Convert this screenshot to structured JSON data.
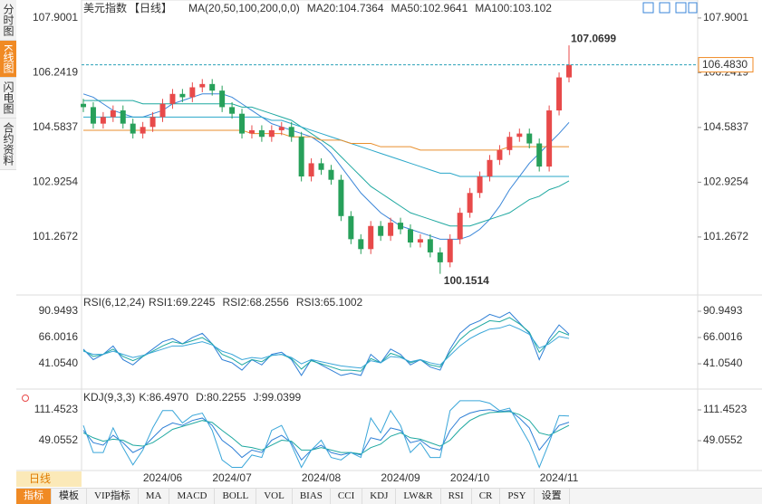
{
  "side_tabs": [
    "分时图",
    "K线图",
    "闪电图",
    "合约资料"
  ],
  "period_button": "日线",
  "toolbar": [
    "指标",
    "模板",
    "VIP指标",
    "MA",
    "MACD",
    "BOLL",
    "VOL",
    "BIAS",
    "CCI",
    "KDJ",
    "LW&R",
    "RSI",
    "CR",
    "PSY",
    "设置"
  ],
  "chart_data": [
    {
      "type": "candlestick",
      "title": "美元指数",
      "subtitle": "【日线】",
      "indicator": "MA(20,50,100,200,0,0)",
      "up_color": "#e84a4a",
      "down_color": "#27a05a",
      "categories": [
        null,
        null,
        null,
        null,
        null,
        null,
        null,
        null,
        "2024/06",
        null,
        null,
        null,
        null,
        null,
        null,
        "2024/07",
        null,
        null,
        null,
        null,
        null,
        null,
        null,
        null,
        "2024/08",
        null,
        null,
        null,
        null,
        null,
        null,
        null,
        "2024/09",
        null,
        null,
        null,
        null,
        null,
        null,
        "2024/10",
        null,
        null,
        null,
        null,
        null,
        null,
        null,
        null,
        "2024/11",
        null
      ],
      "open": [
        105.3,
        105.2,
        104.7,
        104.9,
        105.1,
        104.7,
        104.4,
        104.6,
        104.9,
        105.3,
        105.6,
        105.5,
        105.8,
        105.9,
        105.7,
        105.2,
        105.0,
        104.4,
        104.5,
        104.3,
        104.5,
        104.6,
        104.3,
        103.1,
        103.5,
        103.3,
        103.0,
        101.9,
        101.2,
        100.9,
        101.6,
        101.3,
        101.7,
        101.5,
        101.1,
        101.2,
        100.8,
        100.5,
        101.2,
        102.0,
        102.6,
        103.1,
        103.6,
        103.9,
        104.3,
        104.4,
        104.1,
        103.4,
        105.1,
        106.1
      ],
      "high": [
        105.45,
        105.35,
        105.05,
        105.25,
        105.25,
        104.85,
        104.75,
        105.05,
        105.45,
        105.75,
        105.75,
        105.95,
        106.05,
        106.05,
        105.85,
        105.35,
        105.15,
        104.65,
        104.65,
        104.65,
        104.75,
        104.75,
        104.45,
        103.65,
        103.65,
        103.45,
        103.15,
        102.05,
        101.35,
        101.75,
        101.75,
        101.85,
        101.85,
        101.65,
        101.35,
        101.35,
        100.95,
        101.35,
        102.15,
        102.75,
        103.25,
        103.75,
        104.05,
        104.45,
        104.55,
        104.55,
        104.25,
        105.25,
        106.25,
        107.0699
      ],
      "low": [
        105.05,
        104.55,
        104.55,
        104.75,
        104.55,
        104.25,
        104.25,
        104.45,
        104.75,
        105.15,
        105.35,
        105.35,
        105.65,
        105.55,
        105.05,
        104.85,
        104.25,
        104.25,
        104.15,
        104.15,
        104.35,
        104.15,
        102.95,
        102.95,
        103.15,
        102.85,
        101.75,
        101.05,
        100.75,
        100.75,
        101.15,
        101.15,
        101.35,
        100.95,
        100.95,
        100.65,
        100.1514,
        100.35,
        101.05,
        101.85,
        102.45,
        102.95,
        103.45,
        103.75,
        104.15,
        103.95,
        103.25,
        103.25,
        104.95,
        105.95
      ],
      "close": [
        105.2,
        104.7,
        104.9,
        105.1,
        104.7,
        104.4,
        104.6,
        104.9,
        105.3,
        105.6,
        105.5,
        105.8,
        105.9,
        105.7,
        105.2,
        105.0,
        104.4,
        104.5,
        104.3,
        104.5,
        104.6,
        104.3,
        103.1,
        103.5,
        103.3,
        103.0,
        101.9,
        101.2,
        100.9,
        101.6,
        101.3,
        101.7,
        101.5,
        101.1,
        101.2,
        100.8,
        100.5,
        101.2,
        102.0,
        102.6,
        103.1,
        103.6,
        103.9,
        104.3,
        104.4,
        104.1,
        103.4,
        105.1,
        106.1,
        106.483
      ],
      "last_price": {
        "value": 106.483,
        "label": "106.4830"
      },
      "series": [
        {
          "name": "MA20:104.7364",
          "color": "#3a86d8",
          "values": [
            105.6,
            105.5,
            105.3,
            105.1,
            105.0,
            104.9,
            104.9,
            105.0,
            105.1,
            105.3,
            105.4,
            105.5,
            105.6,
            105.6,
            105.6,
            105.5,
            105.3,
            105.1,
            104.9,
            104.7,
            104.6,
            104.5,
            104.4,
            104.3,
            104.1,
            103.8,
            103.4,
            103.0,
            102.6,
            102.3,
            102.0,
            101.8,
            101.6,
            101.5,
            101.4,
            101.3,
            101.2,
            101.2,
            101.2,
            101.3,
            101.5,
            101.8,
            102.2,
            102.7,
            103.1,
            103.5,
            103.8,
            104.1,
            104.4,
            104.7364
          ]
        },
        {
          "name": "MA50:102.9641",
          "color": "#1ea8a0",
          "values": [
            105.4,
            105.4,
            105.4,
            105.4,
            105.4,
            105.4,
            105.3,
            105.3,
            105.3,
            105.3,
            105.3,
            105.3,
            105.3,
            105.3,
            105.3,
            105.3,
            105.2,
            105.2,
            105.1,
            105.0,
            104.9,
            104.8,
            104.6,
            104.4,
            104.2,
            104.0,
            103.7,
            103.4,
            103.1,
            102.8,
            102.6,
            102.4,
            102.2,
            102.0,
            101.9,
            101.8,
            101.7,
            101.6,
            101.6,
            101.6,
            101.7,
            101.8,
            101.9,
            102.0,
            102.2,
            102.4,
            102.5,
            102.7,
            102.8,
            102.9641
          ]
        },
        {
          "name": "MA100:103.102",
          "color": "#2aa7c9",
          "values": [
            104.9,
            104.9,
            104.9,
            104.9,
            104.9,
            104.9,
            104.9,
            104.9,
            104.9,
            104.9,
            104.9,
            104.9,
            104.9,
            104.9,
            104.9,
            104.9,
            104.9,
            104.9,
            104.9,
            104.8,
            104.8,
            104.7,
            104.6,
            104.5,
            104.4,
            104.3,
            104.2,
            104.1,
            104.0,
            103.9,
            103.8,
            103.7,
            103.6,
            103.5,
            103.4,
            103.3,
            103.2,
            103.2,
            103.1,
            103.1,
            103.1,
            103.1,
            103.1,
            103.1,
            103.1,
            103.1,
            103.1,
            103.1,
            103.1,
            103.102
          ]
        },
        {
          "color": "#e98f2c",
          "values": [
            104.5,
            104.5,
            104.5,
            104.5,
            104.5,
            104.5,
            104.5,
            104.5,
            104.5,
            104.5,
            104.5,
            104.5,
            104.5,
            104.5,
            104.5,
            104.5,
            104.5,
            104.4,
            104.4,
            104.4,
            104.4,
            104.3,
            104.3,
            104.3,
            104.2,
            104.2,
            104.2,
            104.1,
            104.1,
            104.1,
            104.0,
            104.0,
            104.0,
            104.0,
            103.9,
            103.9,
            103.9,
            103.9,
            103.9,
            103.9,
            103.9,
            103.9,
            103.9,
            104.0,
            104.0,
            104.0,
            104.0,
            104.0,
            104.0,
            104.0
          ]
        }
      ],
      "ylim": [
        99.62,
        108.39
      ],
      "yticks": [
        107.9001,
        106.2419,
        104.5837,
        102.9254,
        101.2672
      ]
    },
    {
      "type": "line",
      "title": "RSI(6,12,24)",
      "series": [
        {
          "name": "RSI1:69.2245",
          "color": "#2e7fd6",
          "values": [
            55,
            45,
            50,
            58,
            45,
            40,
            48,
            55,
            62,
            65,
            60,
            66,
            70,
            60,
            45,
            42,
            35,
            45,
            40,
            50,
            52,
            45,
            30,
            45,
            40,
            35,
            30,
            32,
            30,
            50,
            42,
            55,
            50,
            40,
            45,
            38,
            35,
            55,
            70,
            78,
            82,
            88,
            85,
            90,
            80,
            70,
            45,
            65,
            78,
            69.2245
          ]
        },
        {
          "name": "RSI2:68.2556",
          "color": "#1ea8a0",
          "values": [
            54,
            48,
            50,
            55,
            48,
            44,
            48,
            53,
            58,
            62,
            60,
            63,
            66,
            60,
            50,
            46,
            40,
            45,
            43,
            49,
            50,
            46,
            36,
            44,
            41,
            38,
            35,
            35,
            34,
            46,
            42,
            51,
            48,
            42,
            45,
            40,
            38,
            52,
            64,
            72,
            77,
            82,
            81,
            85,
            79,
            71,
            52,
            62,
            72,
            68.2556
          ]
        },
        {
          "name": "RSI3:65.1002",
          "color": "#3aa6d9",
          "values": [
            53,
            50,
            50,
            53,
            50,
            47,
            49,
            52,
            55,
            58,
            58,
            60,
            62,
            59,
            53,
            50,
            45,
            47,
            46,
            49,
            50,
            47,
            41,
            45,
            43,
            41,
            39,
            38,
            37,
            44,
            42,
            48,
            47,
            43,
            45,
            42,
            40,
            49,
            58,
            65,
            70,
            74,
            75,
            78,
            74,
            69,
            56,
            60,
            67,
            65.1002
          ]
        }
      ],
      "ylim": [
        21.3,
        103.0
      ],
      "yticks": [
        90.9493,
        66.0016,
        {
          "value": 41.054,
          "label": "41.0540"
        }
      ]
    },
    {
      "type": "line",
      "title": "KDJ(9,3,3)",
      "series": [
        {
          "name": "K:86.4970",
          "color": "#2e7fd6",
          "values": [
            70,
            45,
            40,
            60,
            45,
            25,
            35,
            55,
            75,
            85,
            80,
            90,
            95,
            80,
            50,
            35,
            15,
            30,
            25,
            50,
            60,
            45,
            10,
            30,
            40,
            25,
            20,
            25,
            20,
            55,
            50,
            75,
            70,
            45,
            50,
            35,
            30,
            70,
            95,
            105,
            110,
            112,
            108,
            110,
            95,
            75,
            30,
            55,
            80,
            86.497
          ]
        },
        {
          "name": "D:80.2255",
          "color": "#1ea8a0",
          "values": [
            65,
            55,
            48,
            52,
            50,
            40,
            38,
            45,
            58,
            72,
            78,
            84,
            90,
            86,
            70,
            55,
            38,
            35,
            30,
            40,
            50,
            48,
            30,
            30,
            35,
            30,
            25,
            25,
            22,
            35,
            42,
            58,
            65,
            55,
            52,
            45,
            38,
            50,
            72,
            90,
            100,
            106,
            107,
            108,
            102,
            90,
            65,
            60,
            70,
            80.2255
          ]
        },
        {
          "name": "J:99.0399",
          "color": "#3aa6d9",
          "values": [
            80,
            25,
            25,
            75,
            35,
            0,
            30,
            75,
            110,
            110,
            85,
            100,
            105,
            70,
            10,
            -5,
            -5,
            20,
            15,
            70,
            80,
            40,
            -5,
            30,
            50,
            15,
            10,
            25,
            15,
            95,
            65,
            110,
            80,
            25,
            45,
            15,
            15,
            110,
            130,
            130,
            130,
            125,
            110,
            115,
            80,
            45,
            -5,
            45,
            100,
            99.0399
          ]
        }
      ],
      "ylim": [
        -7.8,
        144.5
      ],
      "yticks": [
        111.4523,
        49.0552
      ]
    }
  ]
}
